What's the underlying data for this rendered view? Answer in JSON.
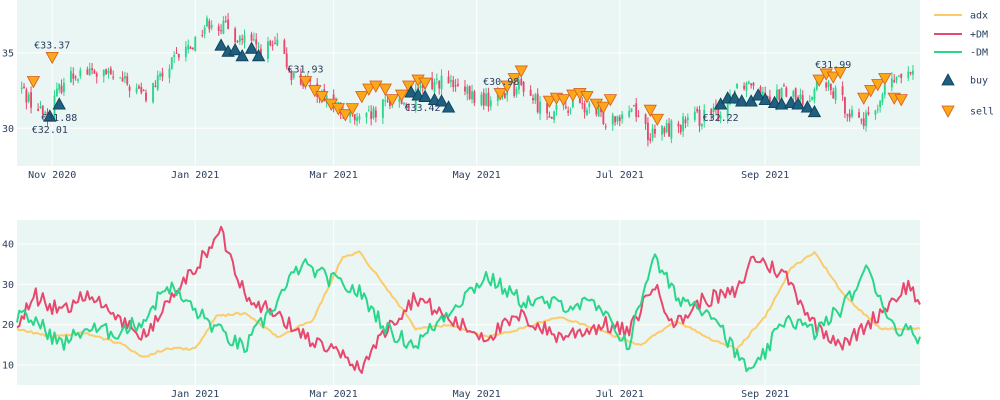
{
  "chart_data": [
    {
      "type": "candlestick",
      "x_range": [
        "2020-10-17",
        "2021-11-06"
      ],
      "ylim": [
        27.5,
        38.5
      ],
      "y_ticks": [
        30,
        35
      ],
      "x_ticks": [
        {
          "date": "2020-11-01",
          "label": "Nov 2020"
        },
        {
          "date": "2021-01-01",
          "label": "Jan 2021"
        },
        {
          "date": "2021-03-01",
          "label": "Mar 2021"
        },
        {
          "date": "2021-05-01",
          "label": "May 2021"
        },
        {
          "date": "2021-07-01",
          "label": "Jul 2021"
        },
        {
          "date": "2021-09-01",
          "label": "Sep 2021"
        }
      ],
      "colors": {
        "increasing": "#2bd68b",
        "decreasing": "#e8486e",
        "buy": "#1f5f80",
        "sell": "#fba81b",
        "plot_bg": "#eaf6f4"
      },
      "close_anchors": [
        [
          "2020-10-19",
          32.6
        ],
        [
          "2020-10-26",
          31.2
        ],
        [
          "2020-10-30",
          31.0
        ],
        [
          "2020-11-06",
          33.2
        ],
        [
          "2020-11-13",
          33.8
        ],
        [
          "2020-11-20",
          33.6
        ],
        [
          "2020-11-27",
          33.4
        ],
        [
          "2020-12-04",
          32.8
        ],
        [
          "2020-12-11",
          32.1
        ],
        [
          "2020-12-18",
          33.5
        ],
        [
          "2020-12-25",
          34.8
        ],
        [
          "2020-12-31",
          35.6
        ],
        [
          "2021-01-05",
          36.8
        ],
        [
          "2021-01-08",
          37.2
        ],
        [
          "2021-01-15",
          36.5
        ],
        [
          "2021-01-22",
          35.8
        ],
        [
          "2021-01-29",
          35.2
        ],
        [
          "2021-02-05",
          35.4
        ],
        [
          "2021-02-12",
          33.4
        ],
        [
          "2021-02-19",
          32.8
        ],
        [
          "2021-02-26",
          32.1
        ],
        [
          "2021-03-05",
          31.0
        ],
        [
          "2021-03-12",
          30.4
        ],
        [
          "2021-03-19",
          30.9
        ],
        [
          "2021-03-26",
          32.0
        ],
        [
          "2021-04-02",
          31.6
        ],
        [
          "2021-04-09",
          32.8
        ],
        [
          "2021-04-16",
          33.2
        ],
        [
          "2021-04-23",
          32.5
        ],
        [
          "2021-04-30",
          32.0
        ],
        [
          "2021-05-07",
          31.8
        ],
        [
          "2021-05-14",
          32.6
        ],
        [
          "2021-05-21",
          32.8
        ],
        [
          "2021-05-28",
          31.4
        ],
        [
          "2021-06-04",
          31.0
        ],
        [
          "2021-06-11",
          31.6
        ],
        [
          "2021-06-18",
          31.2
        ],
        [
          "2021-06-25",
          30.6
        ],
        [
          "2021-07-02",
          31.1
        ],
        [
          "2021-07-07",
          31.5
        ],
        [
          "2021-07-14",
          29.4
        ],
        [
          "2021-07-20",
          29.9
        ],
        [
          "2021-07-30",
          30.4
        ],
        [
          "2021-08-06",
          30.8
        ],
        [
          "2021-08-13",
          31.0
        ],
        [
          "2021-08-20",
          32.9
        ],
        [
          "2021-08-27",
          33.2
        ],
        [
          "2021-09-03",
          32.2
        ],
        [
          "2021-09-10",
          32.4
        ],
        [
          "2021-09-17",
          31.8
        ],
        [
          "2021-09-24",
          33.0
        ],
        [
          "2021-10-01",
          32.2
        ],
        [
          "2021-10-08",
          31.0
        ],
        [
          "2021-10-15",
          30.4
        ],
        [
          "2021-10-22",
          32.6
        ],
        [
          "2021-10-29",
          33.5
        ],
        [
          "2021-11-03",
          33.4
        ]
      ],
      "buy_markers": [
        [
          "2020-10-31",
          30.8
        ],
        [
          "2020-11-04",
          31.6
        ],
        [
          "2021-01-12",
          35.5
        ],
        [
          "2021-01-15",
          35.1
        ],
        [
          "2021-01-18",
          35.2
        ],
        [
          "2021-01-21",
          34.8
        ],
        [
          "2021-01-25",
          35.3
        ],
        [
          "2021-01-28",
          34.8
        ],
        [
          "2021-04-03",
          32.4
        ],
        [
          "2021-04-06",
          32.2
        ],
        [
          "2021-04-09",
          32.1
        ],
        [
          "2021-04-13",
          31.9
        ],
        [
          "2021-04-16",
          31.8
        ],
        [
          "2021-04-19",
          31.4
        ],
        [
          "2021-08-13",
          31.6
        ],
        [
          "2021-08-16",
          32.0
        ],
        [
          "2021-08-19",
          32.0
        ],
        [
          "2021-08-22",
          31.8
        ],
        [
          "2021-08-26",
          31.8
        ],
        [
          "2021-08-29",
          32.2
        ],
        [
          "2021-09-01",
          31.9
        ],
        [
          "2021-09-05",
          31.7
        ],
        [
          "2021-09-08",
          31.6
        ],
        [
          "2021-09-12",
          31.7
        ],
        [
          "2021-09-15",
          31.6
        ],
        [
          "2021-09-19",
          31.4
        ],
        [
          "2021-09-22",
          31.1
        ]
      ],
      "sell_markers": [
        [
          "2020-10-24",
          33.1
        ],
        [
          "2020-11-01",
          34.7
        ],
        [
          "2021-02-17",
          33.1
        ],
        [
          "2021-02-21",
          32.5
        ],
        [
          "2021-02-24",
          32.1
        ],
        [
          "2021-02-28",
          31.6
        ],
        [
          "2021-03-03",
          31.3
        ],
        [
          "2021-03-06",
          30.9
        ],
        [
          "2021-03-09",
          31.3
        ],
        [
          "2021-03-13",
          32.1
        ],
        [
          "2021-03-16",
          32.6
        ],
        [
          "2021-03-19",
          32.8
        ],
        [
          "2021-03-23",
          32.6
        ],
        [
          "2021-03-26",
          31.9
        ],
        [
          "2021-03-30",
          32.2
        ],
        [
          "2021-04-02",
          32.8
        ],
        [
          "2021-04-06",
          33.2
        ],
        [
          "2021-04-09",
          33.0
        ],
        [
          "2021-05-11",
          32.3
        ],
        [
          "2021-05-14",
          32.8
        ],
        [
          "2021-05-17",
          33.3
        ],
        [
          "2021-05-20",
          33.8
        ],
        [
          "2021-06-01",
          31.8
        ],
        [
          "2021-06-04",
          32.0
        ],
        [
          "2021-06-07",
          31.9
        ],
        [
          "2021-06-11",
          32.2
        ],
        [
          "2021-06-14",
          32.3
        ],
        [
          "2021-06-17",
          32.1
        ],
        [
          "2021-06-21",
          31.6
        ],
        [
          "2021-06-24",
          31.4
        ],
        [
          "2021-06-27",
          31.9
        ],
        [
          "2021-07-14",
          31.2
        ],
        [
          "2021-07-17",
          30.6
        ],
        [
          "2021-09-24",
          33.2
        ],
        [
          "2021-09-27",
          33.6
        ],
        [
          "2021-09-30",
          33.4
        ],
        [
          "2021-10-03",
          33.7
        ],
        [
          "2021-10-13",
          32.0
        ],
        [
          "2021-10-16",
          32.5
        ],
        [
          "2021-10-19",
          32.9
        ],
        [
          "2021-10-22",
          33.3
        ],
        [
          "2021-10-26",
          32.0
        ],
        [
          "2021-10-29",
          31.9
        ]
      ],
      "annotations": [
        {
          "text": "€33.37",
          "date": "2020-11-01",
          "y": 34.7,
          "pos": "above"
        },
        {
          "text": "€31.88",
          "date": "2020-11-04",
          "y": 31.6,
          "pos": "below"
        },
        {
          "text": "€32.01",
          "date": "2020-10-31",
          "y": 30.8,
          "pos": "below"
        },
        {
          "text": "€31.93",
          "date": "2021-02-17",
          "y": 33.1,
          "pos": "above"
        },
        {
          "text": "€33.42",
          "date": "2021-04-19",
          "y": 31.4,
          "pos": "left"
        },
        {
          "text": "€30.98",
          "date": "2021-05-20",
          "y": 33.8,
          "pos": "left-below"
        },
        {
          "text": "€32.22",
          "date": "2021-08-13",
          "y": 31.6,
          "pos": "below"
        },
        {
          "text": "€31.99",
          "date": "2021-09-30",
          "y": 33.4,
          "pos": "above"
        }
      ]
    },
    {
      "type": "line",
      "x_range": [
        "2020-10-17",
        "2021-11-06"
      ],
      "ylim": [
        5,
        46
      ],
      "y_ticks": [
        10,
        20,
        30,
        40
      ],
      "x_ticks": [
        {
          "date": "2021-01-01",
          "label": "Jan 2021"
        },
        {
          "date": "2021-03-01",
          "label": "Mar 2021"
        },
        {
          "date": "2021-05-01",
          "label": "May 2021"
        },
        {
          "date": "2021-07-01",
          "label": "Jul 2021"
        },
        {
          "date": "2021-09-01",
          "label": "Sep 2021"
        }
      ],
      "series": [
        {
          "name": "adx",
          "color": "#fbcb6c",
          "points": [
            [
              "2020-10-17",
              19
            ],
            [
              "2020-11-01",
              17
            ],
            [
              "2020-11-15",
              18
            ],
            [
              "2020-12-01",
              15
            ],
            [
              "2020-12-10",
              12
            ],
            [
              "2020-12-20",
              14
            ],
            [
              "2021-01-01",
              14
            ],
            [
              "2021-01-10",
              22
            ],
            [
              "2021-01-22",
              23
            ],
            [
              "2021-02-05",
              17
            ],
            [
              "2021-02-20",
              21
            ],
            [
              "2021-03-05",
              37
            ],
            [
              "2021-03-12",
              38
            ],
            [
              "2021-03-25",
              28
            ],
            [
              "2021-04-05",
              19
            ],
            [
              "2021-04-20",
              20
            ],
            [
              "2021-05-05",
              17
            ],
            [
              "2021-05-20",
              19
            ],
            [
              "2021-06-05",
              22
            ],
            [
              "2021-06-25",
              18
            ],
            [
              "2021-07-10",
              15
            ],
            [
              "2021-07-25",
              21
            ],
            [
              "2021-08-10",
              16
            ],
            [
              "2021-08-20",
              14
            ],
            [
              "2021-09-01",
              22
            ],
            [
              "2021-09-12",
              34
            ],
            [
              "2021-09-22",
              38
            ],
            [
              "2021-10-05",
              27
            ],
            [
              "2021-10-20",
              19
            ],
            [
              "2021-11-06",
              19
            ]
          ]
        },
        {
          "name": "+DM",
          "color": "#e8486e",
          "points": [
            [
              "2020-10-17",
              20
            ],
            [
              "2020-10-25",
              27
            ],
            [
              "2020-11-05",
              23
            ],
            [
              "2020-11-15",
              28
            ],
            [
              "2020-11-28",
              22
            ],
            [
              "2020-12-10",
              17
            ],
            [
              "2020-12-20",
              25
            ],
            [
              "2021-01-02",
              35
            ],
            [
              "2021-01-12",
              43
            ],
            [
              "2021-01-22",
              28
            ],
            [
              "2021-02-05",
              22
            ],
            [
              "2021-02-20",
              16
            ],
            [
              "2021-03-05",
              12
            ],
            [
              "2021-03-12",
              9
            ],
            [
              "2021-03-25",
              20
            ],
            [
              "2021-04-05",
              27
            ],
            [
              "2021-04-20",
              21
            ],
            [
              "2021-05-05",
              17
            ],
            [
              "2021-05-20",
              22
            ],
            [
              "2021-06-05",
              17
            ],
            [
              "2021-06-25",
              20
            ],
            [
              "2021-07-05",
              18
            ],
            [
              "2021-07-15",
              30
            ],
            [
              "2021-07-25",
              20
            ],
            [
              "2021-08-05",
              26
            ],
            [
              "2021-08-20",
              28
            ],
            [
              "2021-08-27",
              37
            ],
            [
              "2021-09-10",
              32
            ],
            [
              "2021-09-22",
              20
            ],
            [
              "2021-10-05",
              15
            ],
            [
              "2021-10-20",
              23
            ],
            [
              "2021-11-01",
              30
            ],
            [
              "2021-11-06",
              25
            ]
          ]
        },
        {
          "name": "-DM",
          "color": "#2bd68b",
          "points": [
            [
              "2020-10-17",
              22
            ],
            [
              "2020-10-25",
              21
            ],
            [
              "2020-11-05",
              15
            ],
            [
              "2020-11-15",
              19
            ],
            [
              "2020-11-28",
              18
            ],
            [
              "2020-12-10",
              21
            ],
            [
              "2020-12-20",
              30
            ],
            [
              "2021-01-02",
              23
            ],
            [
              "2021-01-12",
              18
            ],
            [
              "2021-01-22",
              14
            ],
            [
              "2021-02-05",
              26
            ],
            [
              "2021-02-15",
              35
            ],
            [
              "2021-02-25",
              32
            ],
            [
              "2021-03-12",
              28
            ],
            [
              "2021-03-25",
              18
            ],
            [
              "2021-04-05",
              15
            ],
            [
              "2021-04-20",
              24
            ],
            [
              "2021-05-05",
              32
            ],
            [
              "2021-05-20",
              26
            ],
            [
              "2021-06-05",
              25
            ],
            [
              "2021-06-20",
              25
            ],
            [
              "2021-07-05",
              15
            ],
            [
              "2021-07-15",
              37
            ],
            [
              "2021-07-25",
              27
            ],
            [
              "2021-08-10",
              23
            ],
            [
              "2021-08-20",
              12
            ],
            [
              "2021-08-27",
              8
            ],
            [
              "2021-09-10",
              22
            ],
            [
              "2021-09-22",
              18
            ],
            [
              "2021-10-05",
              25
            ],
            [
              "2021-10-15",
              34
            ],
            [
              "2021-10-25",
              20
            ],
            [
              "2021-11-06",
              17
            ]
          ]
        }
      ]
    }
  ],
  "legend": [
    {
      "label": "adx",
      "kind": "line",
      "color": "#fbcb6c"
    },
    {
      "label": "+DM",
      "kind": "line",
      "color": "#e8486e"
    },
    {
      "label": "-DM",
      "kind": "line",
      "color": "#2bd68b"
    },
    {
      "label": "buy",
      "kind": "triangle-up",
      "color": "#1f5f80"
    },
    {
      "label": "sell",
      "kind": "triangle-down",
      "color": "#fba81b"
    }
  ]
}
